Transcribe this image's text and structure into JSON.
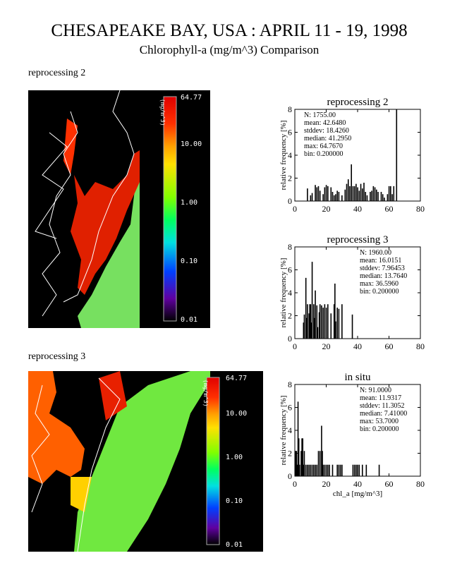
{
  "title": "CHESAPEAKE BAY, USA : APRIL 11 - 19, 1998",
  "subtitle": "Chlorophyll-a (mg/m^3) Comparison",
  "maps": [
    {
      "label": "reprocessing 2",
      "colorbar_units": "(mg/m^3)",
      "colorbar_ticks": [
        "64.77",
        "10.00",
        "1.00",
        "0.10",
        "0.01"
      ]
    },
    {
      "label": "reprocessing 3",
      "colorbar_units": "(mg/m^3)",
      "colorbar_ticks": [
        "64.77",
        "10.00",
        "1.00",
        "0.10",
        "0.01"
      ]
    }
  ],
  "chart_data": [
    {
      "type": "bar",
      "title": "reprocessing 2",
      "xlabel": "",
      "ylabel": "relative frequency [%]",
      "xlim": [
        0,
        80
      ],
      "ylim": [
        0,
        8
      ],
      "xticks": [
        "0",
        "20",
        "40",
        "60",
        "80"
      ],
      "yticks": [
        "0",
        "2",
        "4",
        "6",
        "8"
      ],
      "stats": [
        "N: 1755.00",
        "mean: 42.6480",
        "stddev: 18.4260",
        "median: 41.2950",
        "max: 64.7670",
        "bin: 0.200000"
      ],
      "bars": [
        [
          8,
          1.1
        ],
        [
          10,
          0.5
        ],
        [
          11,
          0.7
        ],
        [
          13,
          1.4
        ],
        [
          14,
          1.2
        ],
        [
          15,
          1.3
        ],
        [
          16,
          0.9
        ],
        [
          18,
          0.6
        ],
        [
          19,
          1.2
        ],
        [
          20,
          1.4
        ],
        [
          21,
          1.3
        ],
        [
          23,
          1.2
        ],
        [
          24,
          0.8
        ],
        [
          25,
          0.5
        ],
        [
          26,
          0.6
        ],
        [
          27,
          0.9
        ],
        [
          28,
          0.8
        ],
        [
          30,
          0.5
        ],
        [
          32,
          1.0
        ],
        [
          33,
          1.5
        ],
        [
          34,
          1.9
        ],
        [
          35,
          1.3
        ],
        [
          36,
          3.2
        ],
        [
          37,
          1.3
        ],
        [
          38,
          1.3
        ],
        [
          39,
          1.5
        ],
        [
          40,
          1.2
        ],
        [
          41,
          0.9
        ],
        [
          42,
          1.5
        ],
        [
          43,
          1.1
        ],
        [
          44,
          1.6
        ],
        [
          45,
          0.8
        ],
        [
          46,
          0.5
        ],
        [
          48,
          0.8
        ],
        [
          49,
          0.9
        ],
        [
          50,
          1.3
        ],
        [
          51,
          1.2
        ],
        [
          52,
          1.0
        ],
        [
          53,
          0.8
        ],
        [
          55,
          0.8
        ],
        [
          56,
          0.6
        ],
        [
          57,
          0.3
        ],
        [
          59,
          0.6
        ],
        [
          60,
          1.3
        ],
        [
          61,
          1.3
        ],
        [
          62,
          0.6
        ],
        [
          63,
          1.3
        ],
        [
          64.8,
          8
        ]
      ]
    },
    {
      "type": "bar",
      "title": "reprocessing 3",
      "xlabel": "",
      "ylabel": "relative frequency [%]",
      "xlim": [
        0,
        80
      ],
      "ylim": [
        0,
        8
      ],
      "xticks": [
        "0",
        "20",
        "40",
        "60",
        "80"
      ],
      "yticks": [
        "0",
        "2",
        "4",
        "6",
        "8"
      ],
      "stats": [
        "N: 1960.00",
        "mean: 16.0151",
        "stddev: 7.96453",
        "median: 13.7640",
        "max: 36.5960",
        "bin: 0.200000"
      ],
      "bars": [
        [
          5.5,
          1.4
        ],
        [
          6,
          2.1
        ],
        [
          7,
          5.3
        ],
        [
          7.5,
          1.8
        ],
        [
          8,
          3.0
        ],
        [
          9,
          2.2
        ],
        [
          9.5,
          3.0
        ],
        [
          10,
          3.0
        ],
        [
          10.5,
          1.4
        ],
        [
          11,
          6.7
        ],
        [
          12,
          3.0
        ],
        [
          12.5,
          1.8
        ],
        [
          13,
          4.2
        ],
        [
          14,
          2.9
        ],
        [
          14.5,
          1.0
        ],
        [
          15.5,
          2.3
        ],
        [
          16,
          3.0
        ],
        [
          17,
          2.9
        ],
        [
          18,
          2.7
        ],
        [
          19,
          3.0
        ],
        [
          20,
          2.7
        ],
        [
          21,
          3.0
        ],
        [
          23,
          2.2
        ],
        [
          25,
          3.0
        ],
        [
          25.5,
          4.8
        ],
        [
          26,
          1.5
        ],
        [
          27,
          2.7
        ],
        [
          28,
          2.6
        ],
        [
          30,
          3.0
        ],
        [
          36.6,
          2.1
        ]
      ]
    },
    {
      "type": "bar",
      "title": "in situ",
      "xlabel": "chl_a [mg/m^3]",
      "ylabel": "relative frequency [%]",
      "xlim": [
        0,
        80
      ],
      "ylim": [
        0,
        8
      ],
      "xticks": [
        "0",
        "20",
        "40",
        "60",
        "80"
      ],
      "yticks": [
        "0",
        "2",
        "4",
        "6",
        "8"
      ],
      "stats": [
        "N: 91.0000",
        "mean: 11.9317",
        "stddev: 11.3052",
        "median: 7.41000",
        "max: 53.7000",
        "bin: 0.200000"
      ],
      "bars": [
        [
          0.5,
          2.2
        ],
        [
          1,
          2.2
        ],
        [
          1.5,
          1
        ],
        [
          2,
          6.5
        ],
        [
          2.5,
          3.3
        ],
        [
          3,
          1
        ],
        [
          4,
          2.2
        ],
        [
          4.5,
          3.3
        ],
        [
          5,
          3.3
        ],
        [
          5.5,
          1
        ],
        [
          6,
          2.2
        ],
        [
          7,
          1
        ],
        [
          8,
          1
        ],
        [
          9,
          1
        ],
        [
          10,
          1
        ],
        [
          11,
          1
        ],
        [
          12,
          1
        ],
        [
          13,
          1
        ],
        [
          14,
          1
        ],
        [
          15,
          2.2
        ],
        [
          16,
          2.2
        ],
        [
          17,
          4.4
        ],
        [
          17.5,
          2.2
        ],
        [
          18,
          1
        ],
        [
          19,
          1
        ],
        [
          20,
          1
        ],
        [
          21,
          1
        ],
        [
          22,
          1
        ],
        [
          24,
          1
        ],
        [
          27,
          1
        ],
        [
          28,
          1
        ],
        [
          29,
          1
        ],
        [
          30,
          1
        ],
        [
          37,
          1
        ],
        [
          38,
          1
        ],
        [
          39,
          1
        ],
        [
          40,
          1
        ],
        [
          41,
          1
        ],
        [
          43,
          1
        ],
        [
          45.5,
          1
        ],
        [
          53.7,
          1
        ]
      ]
    }
  ]
}
